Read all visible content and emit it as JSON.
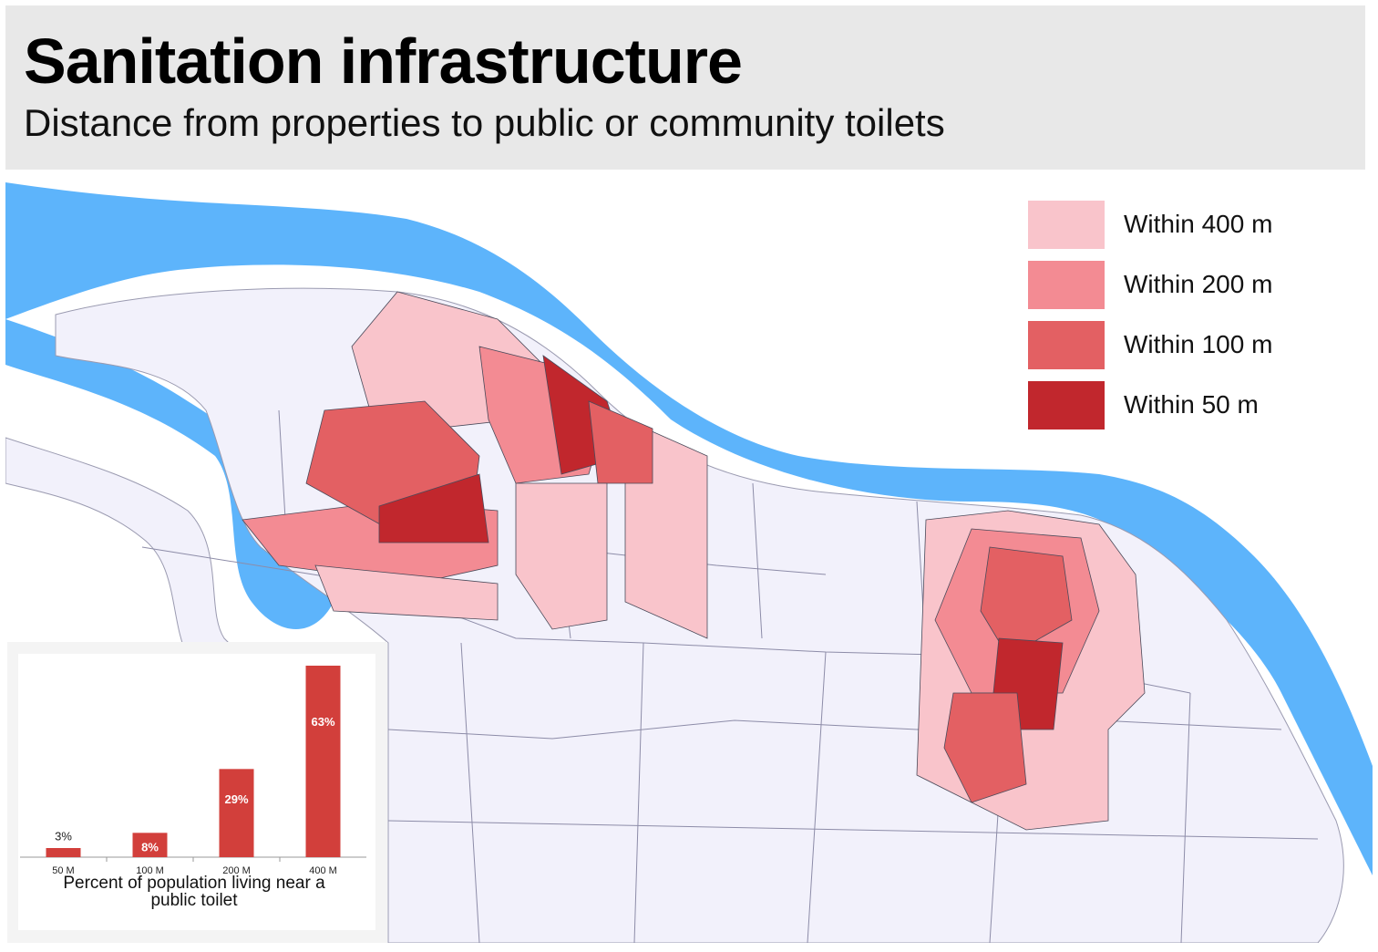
{
  "header": {
    "title": "Sanitation infrastructure",
    "subtitle": "Distance from properties to public or community toilets"
  },
  "legend": [
    {
      "label": "Within 400 m",
      "color": "#f9c4cb"
    },
    {
      "label": "Within 200 m",
      "color": "#f38b93"
    },
    {
      "label": "Within 100 m",
      "color": "#e36063"
    },
    {
      "label": "Within 50 m",
      "color": "#c1272d"
    }
  ],
  "chart_data": {
    "type": "bar",
    "title": "Percent of population living near a public toilet",
    "categories": [
      "50 M",
      "100 M",
      "200 M",
      "400 M"
    ],
    "values": [
      3,
      8,
      29,
      63
    ],
    "value_labels": [
      "3%",
      "8%",
      "29%",
      "63%"
    ],
    "color": "#d23f3b"
  }
}
